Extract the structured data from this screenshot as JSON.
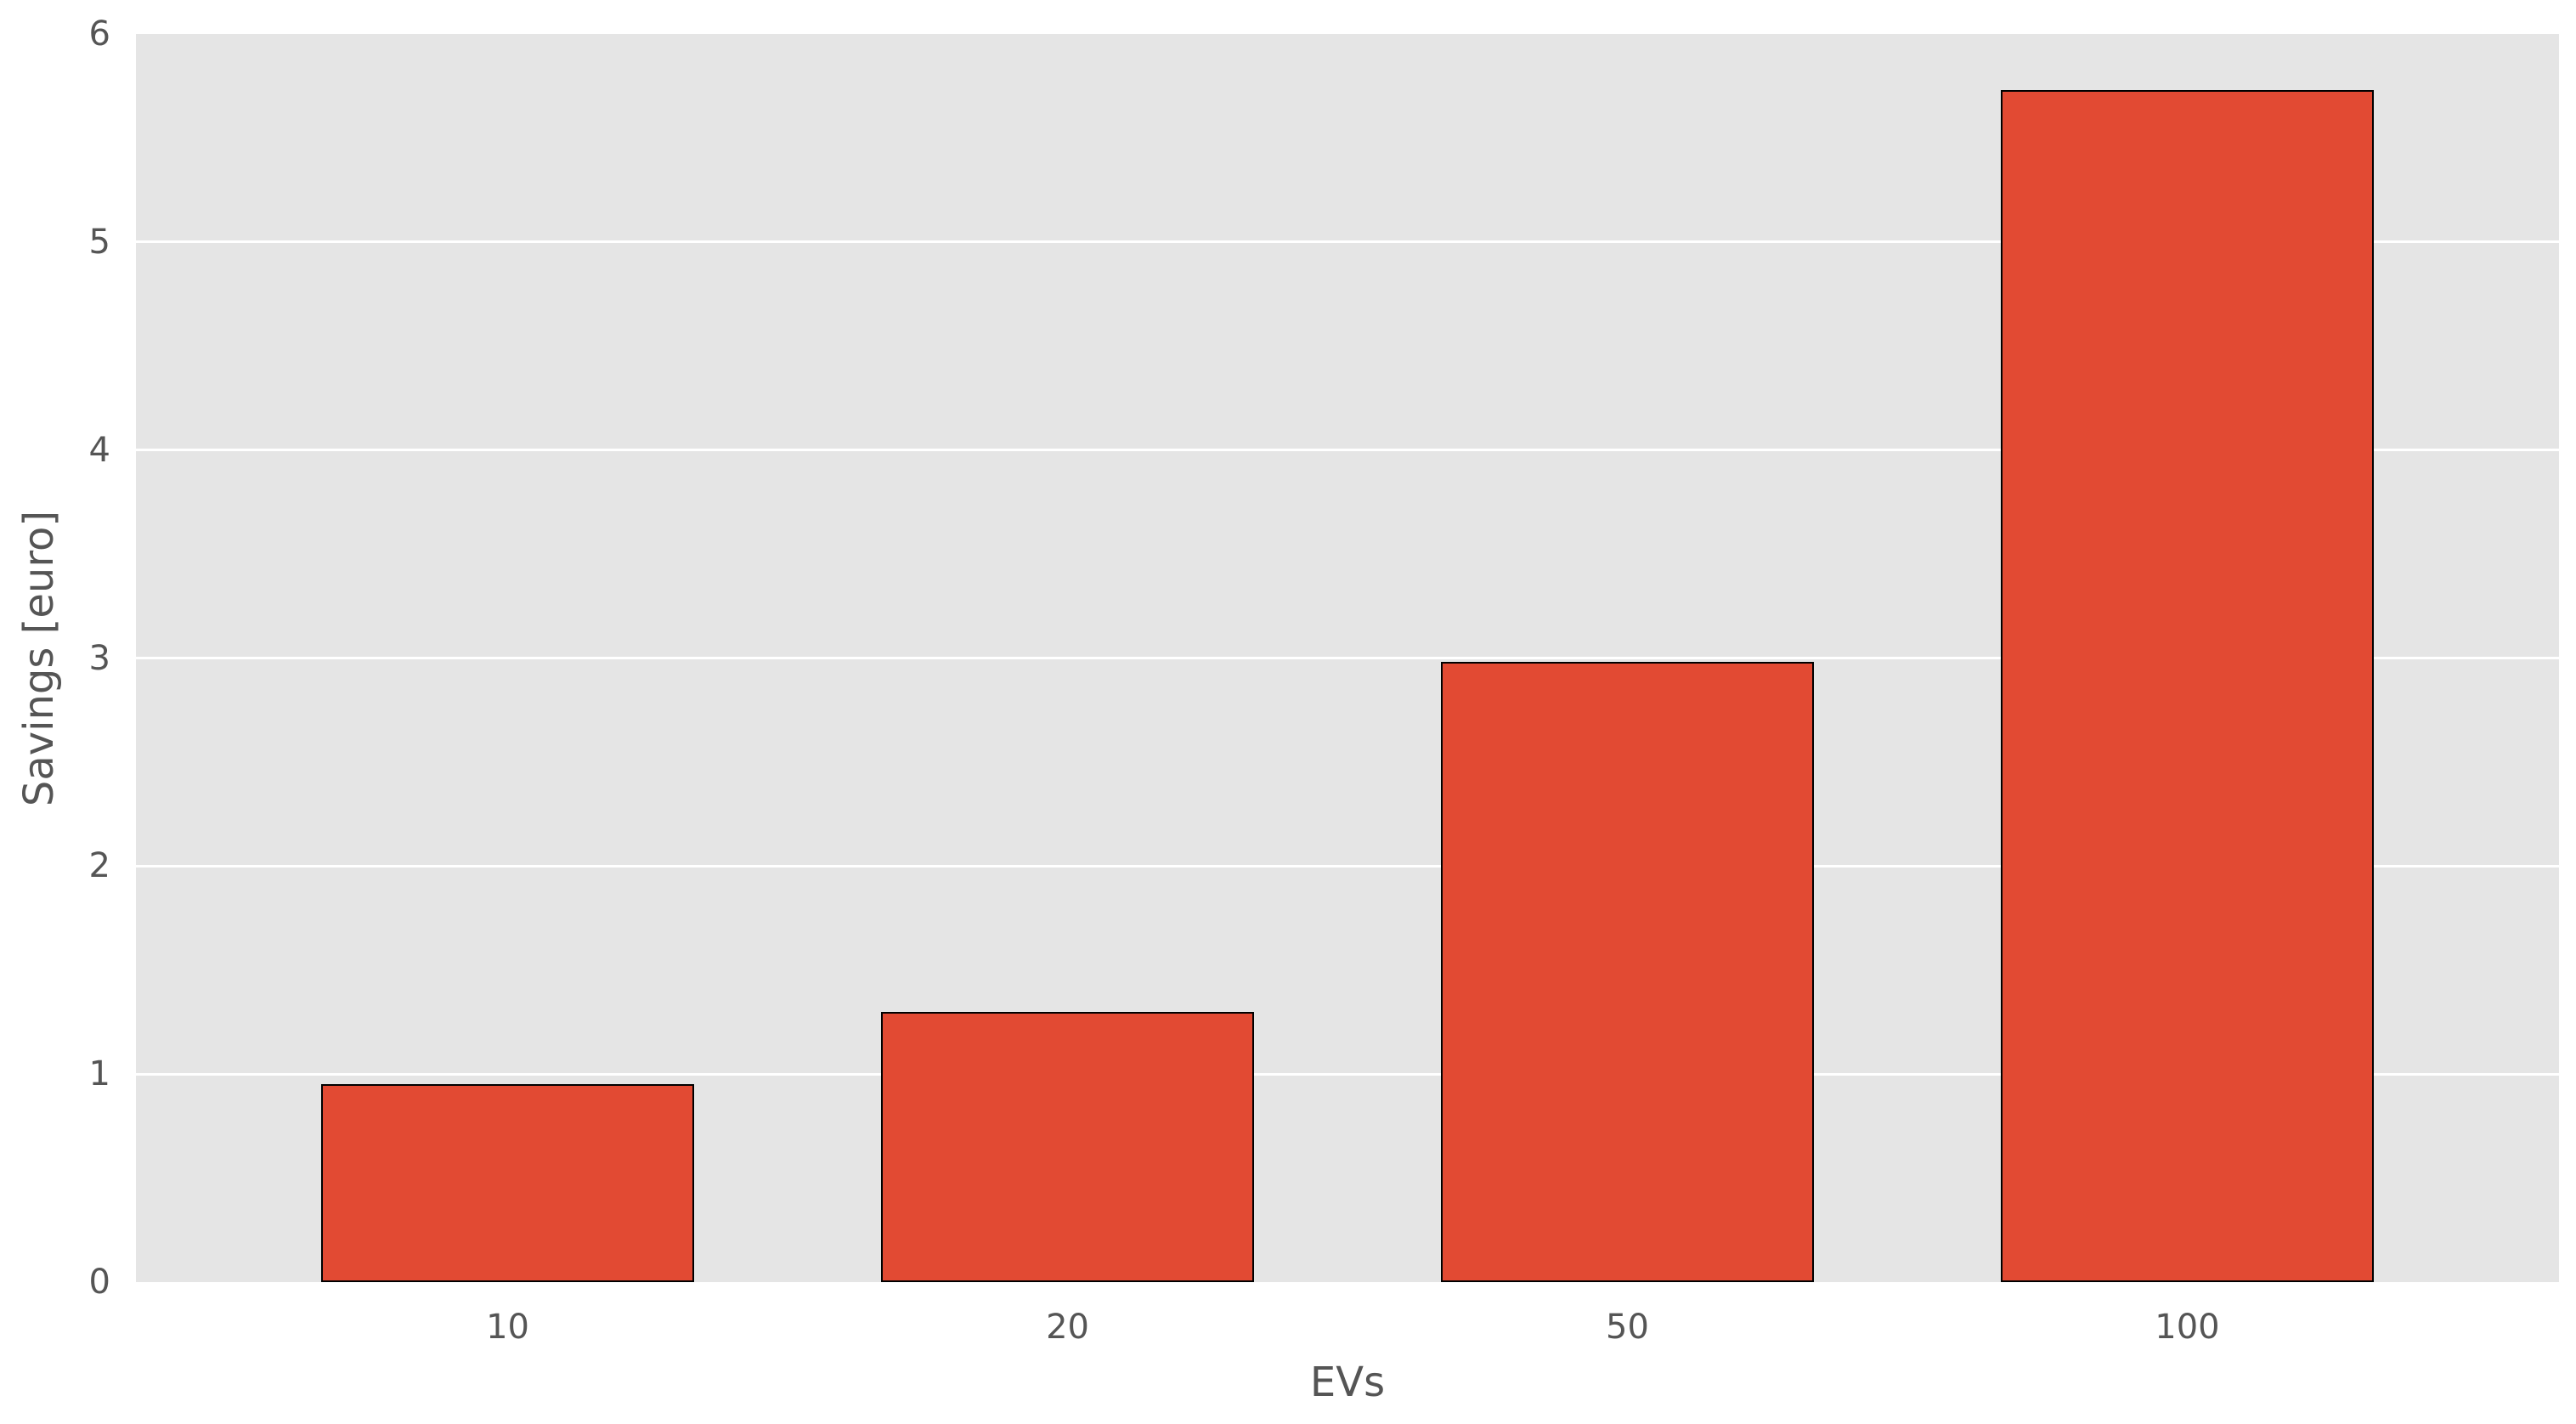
{
  "chart_data": {
    "type": "bar",
    "title": "",
    "categories": [
      "10",
      "20",
      "50",
      "100"
    ],
    "values": [
      0.95,
      1.3,
      2.98,
      5.73
    ],
    "xlabel": "EVs",
    "ylabel": "Savings [euro]",
    "ylim": [
      0,
      6
    ],
    "yticks": [
      "0",
      "1",
      "2",
      "3",
      "4",
      "5",
      "6"
    ],
    "grid": true,
    "legend": false,
    "colors": {
      "bar_fill": "#e24a33",
      "bar_edge": "#000000",
      "plot_background": "#e5e5e5",
      "grid_line": "#ffffff",
      "text": "#555555"
    }
  }
}
